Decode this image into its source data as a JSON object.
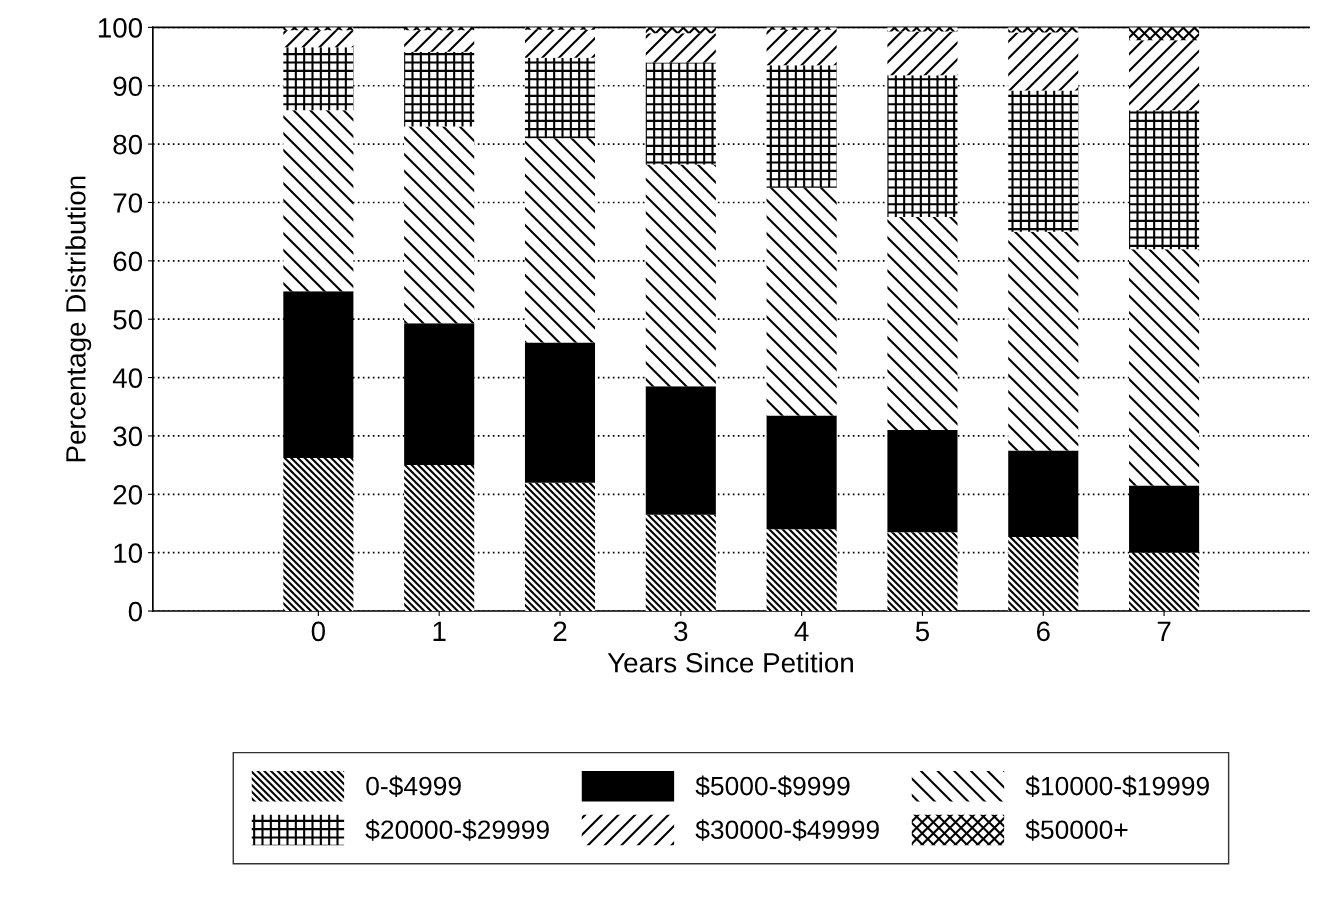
{
  "chart_data": {
    "type": "bar",
    "stacked": true,
    "xlabel": "Years Since Petition",
    "ylabel": "Percentage Distribution",
    "categories": [
      "0",
      "1",
      "2",
      "3",
      "4",
      "5",
      "6",
      "7"
    ],
    "series": [
      {
        "name": "0-$4999",
        "color": "#ffffff",
        "values": [
          26.2,
          25,
          22,
          16.5,
          14,
          13.5,
          12.7,
          10
        ]
      },
      {
        "name": "$5000-$9999",
        "color": "#000000",
        "values": [
          28.6,
          24.3,
          24,
          22,
          19.5,
          17.5,
          14.8,
          11.5
        ]
      },
      {
        "name": "$10000-$19999",
        "color": "#ffffff",
        "values": [
          31,
          33.7,
          35,
          38,
          39,
          36.5,
          37.5,
          40.5
        ]
      },
      {
        "name": "$20000-$29999",
        "color": "#ffffff",
        "values": [
          10.8,
          12.8,
          13.8,
          17.5,
          21,
          24.3,
          24.2,
          23.8
        ]
      },
      {
        "name": "$30000-$49999",
        "color": "#ffffff",
        "values": [
          2.9,
          3.7,
          4.8,
          5,
          6.1,
          7.5,
          9.9,
          12
        ]
      },
      {
        "name": "$50000+",
        "color": "#ffffff",
        "values": [
          0.5,
          0.5,
          0.4,
          1,
          0.4,
          0.7,
          0.9,
          2.2
        ]
      }
    ],
    "ylim": [
      0,
      100
    ],
    "yticks": [
      0,
      10,
      20,
      30,
      40,
      50,
      60,
      70,
      80,
      90,
      100
    ],
    "grid": "y",
    "legend": "bottom"
  }
}
